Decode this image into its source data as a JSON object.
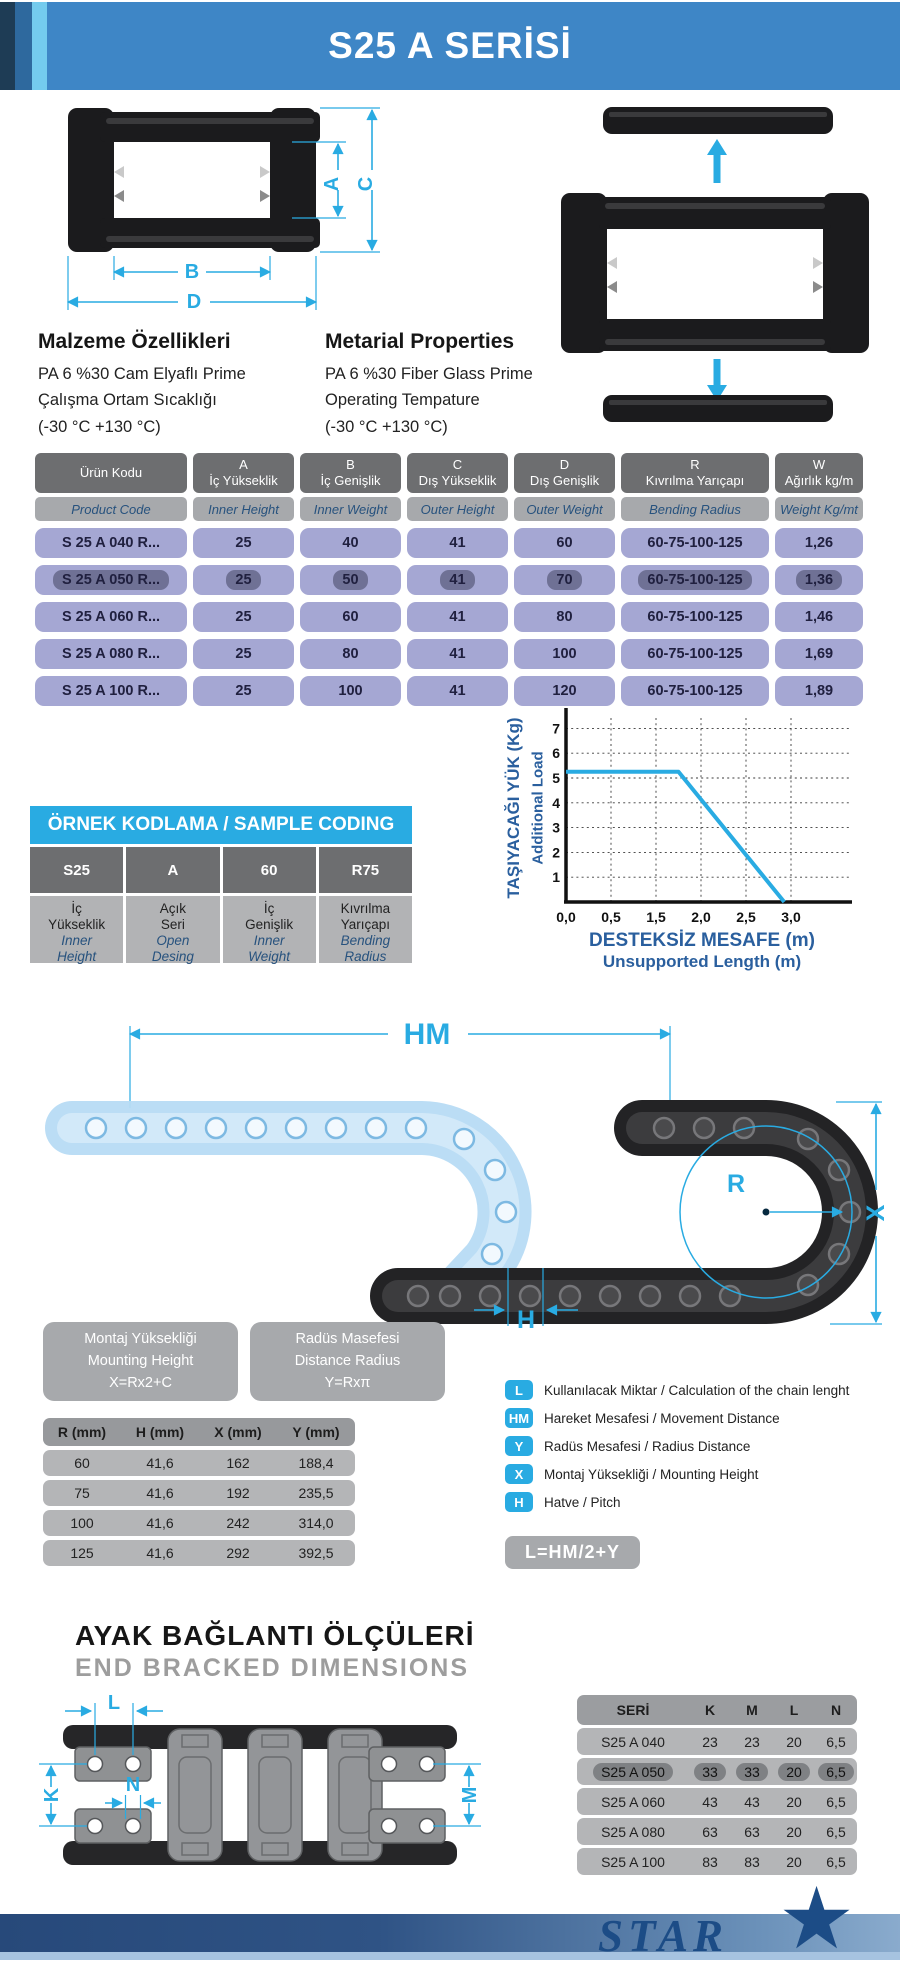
{
  "header": {
    "title": "S25 A SERİSİ"
  },
  "materials": {
    "tr": {
      "title": "Malzeme Özellikleri",
      "body": "PA 6 %30 Cam Elyaflı Prime\nÇalışma Ortam Sıcaklığı\n(-30 °C +130 °C)"
    },
    "en": {
      "title": "Metarial Properties",
      "body": "PA 6 %30 Fiber Glass Prime\nOperating Tempature\n(-30 °C +130 °C)"
    }
  },
  "main_table": {
    "columns": [
      {
        "code": "",
        "tr": "Ürün Kodu",
        "en": "Product Code"
      },
      {
        "code": "A",
        "tr": "İç Yükseklik",
        "en": "Inner Height"
      },
      {
        "code": "B",
        "tr": "İç Genişlik",
        "en": "Inner Weight"
      },
      {
        "code": "C",
        "tr": "Dış Yükseklik",
        "en": "Outer Height"
      },
      {
        "code": "D",
        "tr": "Dış Genişlik",
        "en": "Outer Weight"
      },
      {
        "code": "R",
        "tr": "Kıvrılma Yarıçapı",
        "en": "Bending Radius"
      },
      {
        "code": "W",
        "tr": "Ağırlık kg/m",
        "en": "Weight Kg/mt"
      }
    ],
    "rows": [
      {
        "highlighted": false,
        "cells": [
          "S 25 A 040 R...",
          "25",
          "40",
          "41",
          "60",
          "60-75-100-125",
          "1,26"
        ]
      },
      {
        "highlighted": true,
        "cells": [
          "S 25 A 050 R...",
          "25",
          "50",
          "41",
          "70",
          "60-75-100-125",
          "1,36"
        ]
      },
      {
        "highlighted": false,
        "cells": [
          "S 25 A 060 R...",
          "25",
          "60",
          "41",
          "80",
          "60-75-100-125",
          "1,46"
        ]
      },
      {
        "highlighted": false,
        "cells": [
          "S 25 A 080 R...",
          "25",
          "80",
          "41",
          "100",
          "60-75-100-125",
          "1,69"
        ]
      },
      {
        "highlighted": false,
        "cells": [
          "S 25 A 100 R...",
          "25",
          "100",
          "41",
          "120",
          "60-75-100-125",
          "1,89"
        ]
      }
    ]
  },
  "chart_data": {
    "type": "line",
    "ylabel_tr": "TAŞIYACAĞI YÜK  (Kg)",
    "ylabel_en": "Additional Load",
    "xlabel_tr": "DESTEKSİZ MESAFE (m)",
    "xlabel_en": "Unsupported Length (m)",
    "x_tick_labels": [
      "0,0",
      "0,5",
      "1,5",
      "2,0",
      "2,5",
      "3,0"
    ],
    "y_ticks": [
      1,
      2,
      3,
      4,
      5,
      6,
      7
    ],
    "ylim": [
      0,
      7.5
    ],
    "grid": "dotted",
    "legend_position": "none",
    "line_color": "#29abe2",
    "series": [
      {
        "name": "additional-load",
        "points_note": "x in tick-interval units (ticks evenly spaced as labeled), y in Kg",
        "points": [
          [
            0,
            5.25
          ],
          [
            2.5,
            5.25
          ],
          [
            4.85,
            0
          ]
        ]
      }
    ]
  },
  "sample_coding": {
    "title": "ÖRNEK KODLAMA / SAMPLE CODING",
    "items": [
      {
        "code": "S25",
        "tr": "İç\nYükseklik",
        "en": "Inner\nHeight"
      },
      {
        "code": "A",
        "tr": "Açık\nSeri",
        "en": "Open\nDesing"
      },
      {
        "code": "60",
        "tr": "İç\nGenişlik",
        "en": "Inner\nWeight"
      },
      {
        "code": "R75",
        "tr": "Kıvrılma\nYarıçapı",
        "en": "Bending\nRadius"
      }
    ]
  },
  "diagram_labels": {
    "cross_section": {
      "a": "A",
      "b": "B",
      "c": "C",
      "d": "D"
    },
    "chain": {
      "hm": "HM",
      "r": "R",
      "x": "X",
      "h": "H"
    },
    "bracket": {
      "l": "L",
      "k": "K",
      "n": "N",
      "m": "M"
    }
  },
  "info_boxes": [
    {
      "body": "Montaj Yüksekliği\nMounting Height\nX=Rx2+C"
    },
    {
      "body": "Radüs Masefesi\nDistance Radius\nY=Rxπ"
    }
  ],
  "r_table": {
    "headers": [
      "R (mm)",
      "H (mm)",
      "X (mm)",
      "Y (mm)"
    ],
    "rows": [
      [
        "60",
        "41,6",
        "162",
        "188,4"
      ],
      [
        "75",
        "41,6",
        "192",
        "235,5"
      ],
      [
        "100",
        "41,6",
        "242",
        "314,0"
      ],
      [
        "125",
        "41,6",
        "292",
        "392,5"
      ]
    ]
  },
  "legend": {
    "items": [
      {
        "badge": "L",
        "text": "Kullanılacak Miktar / Calculation of the chain lenght"
      },
      {
        "badge": "HM",
        "text": "Hareket Mesafesi / Movement Distance"
      },
      {
        "badge": "Y",
        "text": "Radüs Mesafesi / Radius Distance"
      },
      {
        "badge": "X",
        "text": "Montaj Yüksekliği / Mounting Height"
      },
      {
        "badge": "H",
        "text": "Hatve / Pitch"
      }
    ],
    "formula": "L=HM/2+Y"
  },
  "end_bracket": {
    "title_tr": "AYAK BAĞLANTI ÖLÇÜLERİ",
    "title_en": "END BRACKED DIMENSIONS",
    "table": {
      "headers": [
        "SERİ",
        "K",
        "M",
        "L",
        "N"
      ],
      "rows": [
        {
          "highlighted": false,
          "cells": [
            "S25 A 040",
            "23",
            "23",
            "20",
            "6,5"
          ]
        },
        {
          "highlighted": true,
          "cells": [
            "S25 A 050",
            "33",
            "33",
            "20",
            "6,5"
          ]
        },
        {
          "highlighted": false,
          "cells": [
            "S25 A 060",
            "43",
            "43",
            "20",
            "6,5"
          ]
        },
        {
          "highlighted": false,
          "cells": [
            "S25 A 080",
            "63",
            "63",
            "20",
            "6,5"
          ]
        },
        {
          "highlighted": false,
          "cells": [
            "S25 A 100",
            "83",
            "83",
            "20",
            "6,5"
          ]
        }
      ]
    }
  },
  "footer": {
    "brand": "STAR"
  },
  "colors": {
    "header_blue": "#3e86c6",
    "accent_cyan": "#29abe2",
    "table_lavender": "#a5a7d3",
    "gray_dark": "#6d6e70",
    "gray_light": "#a7a9ac",
    "footer_navy": "#1c4c86",
    "chart_line": "#29abe2"
  }
}
